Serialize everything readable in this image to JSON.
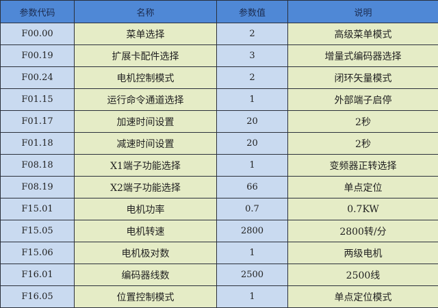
{
  "headers": [
    "参数代码",
    "名称",
    "参数值",
    "说明"
  ],
  "rows": [
    [
      "F00.00",
      "菜单选择",
      "2",
      "高级菜单模式"
    ],
    [
      "F00.19",
      "扩展卡配件选择",
      "3",
      "增量式编码器选择"
    ],
    [
      "F00.24",
      "电机控制模式",
      "2",
      "闭环矢量模式"
    ],
    [
      "F01.15",
      "运行命令通道选择",
      "1",
      "外部端子启停"
    ],
    [
      "F01.17",
      "加速时间设置",
      "20",
      "2秒"
    ],
    [
      "F01.18",
      "减速时间设置",
      "20",
      "2秒"
    ],
    [
      "F08.18",
      "X1端子功能选择",
      "1",
      "变频器正转选择"
    ],
    [
      "F08.19",
      "X2端子功能选择",
      "66",
      "单点定位"
    ],
    [
      "F15.01",
      "电机功率",
      "0.7",
      "0.7KW"
    ],
    [
      "F15.05",
      "电机转速",
      "2800",
      "2800转/分"
    ],
    [
      "F15.06",
      "电机极对数",
      "1",
      "两级电机"
    ],
    [
      "F16.01",
      "编码器线数",
      "2500",
      "2500线"
    ],
    [
      "F16.05",
      "位置控制模式",
      "1",
      "单点定位模式"
    ]
  ]
}
